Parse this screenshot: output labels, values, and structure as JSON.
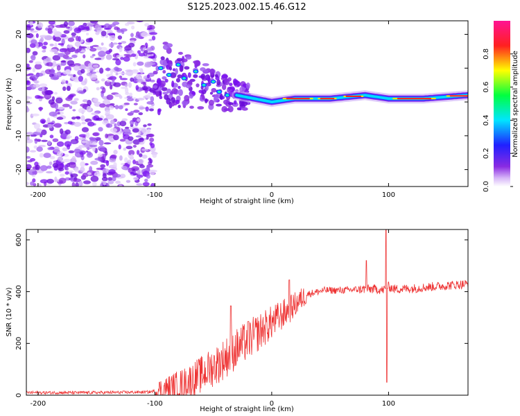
{
  "title": "S125.2023.002.15.46.G12",
  "chart_data": [
    {
      "type": "heatmap",
      "xlabel": "Height of straight line (km)",
      "ylabel": "Frequency (Hz)",
      "xlim": [
        -210,
        168
      ],
      "ylim": [
        -25,
        24
      ],
      "xticks": [
        -200,
        -100,
        0,
        100
      ],
      "xtick_labels": [
        "-200",
        "-100",
        "0",
        "100"
      ],
      "yticks": [
        -20,
        -10,
        0,
        10,
        20
      ],
      "ytick_labels": [
        "-20",
        "-10",
        "0",
        "10",
        "20"
      ],
      "colorbar": {
        "label": "Normalized spectral amplitude",
        "range": [
          0,
          1
        ],
        "ticks": [
          0.0,
          0.2,
          0.4,
          0.6,
          0.8
        ],
        "tick_labels": [
          "0.0",
          "0.2",
          "0.4",
          "0.6",
          "0.8"
        ],
        "colormap": "rainbow (white-purple-blue-cyan-green-yellow-red-pink)"
      },
      "ridge": {
        "description": "dominant frequency ridge",
        "points": [
          [
            -95,
            9
          ],
          [
            -80,
            7
          ],
          [
            -60,
            5
          ],
          [
            -45,
            3
          ],
          [
            -30,
            2
          ],
          [
            -15,
            1
          ],
          [
            0,
            0
          ],
          [
            20,
            1
          ],
          [
            50,
            1
          ],
          [
            80,
            2
          ],
          [
            100,
            1
          ],
          [
            130,
            1
          ],
          [
            168,
            2
          ]
        ]
      },
      "noise_region_km": [
        -210,
        -100
      ]
    },
    {
      "type": "line",
      "xlabel": "Height of straight line (km)",
      "ylabel": "SNR (10 * v/v)",
      "xlim": [
        -210,
        168
      ],
      "ylim": [
        0,
        640
      ],
      "xticks": [
        -200,
        -100,
        0,
        100
      ],
      "xtick_labels": [
        "-200",
        "-100",
        "0",
        "100"
      ],
      "yticks": [
        0,
        200,
        400,
        600
      ],
      "ytick_labels": [
        "0",
        "200",
        "400",
        "600"
      ],
      "color": "#ee3333",
      "envelope": {
        "x": [
          -210,
          -150,
          -105,
          -90,
          -75,
          -60,
          -45,
          -30,
          -15,
          0,
          15,
          30,
          45,
          60,
          80,
          90,
          95,
          100,
          105,
          120,
          140,
          168
        ],
        "y": [
          10,
          10,
          12,
          25,
          45,
          80,
          125,
          180,
          230,
          280,
          330,
          390,
          405,
          405,
          410,
          410,
          405,
          420,
          410,
          412,
          420,
          430
        ]
      },
      "spikes": [
        {
          "x": -35,
          "y": 345
        },
        {
          "x": -20,
          "y": 285
        },
        {
          "x": 15,
          "y": 445
        },
        {
          "x": 81,
          "y": 520
        },
        {
          "x": 98,
          "y": 640
        },
        {
          "x": 98.5,
          "y": 50
        }
      ]
    }
  ]
}
